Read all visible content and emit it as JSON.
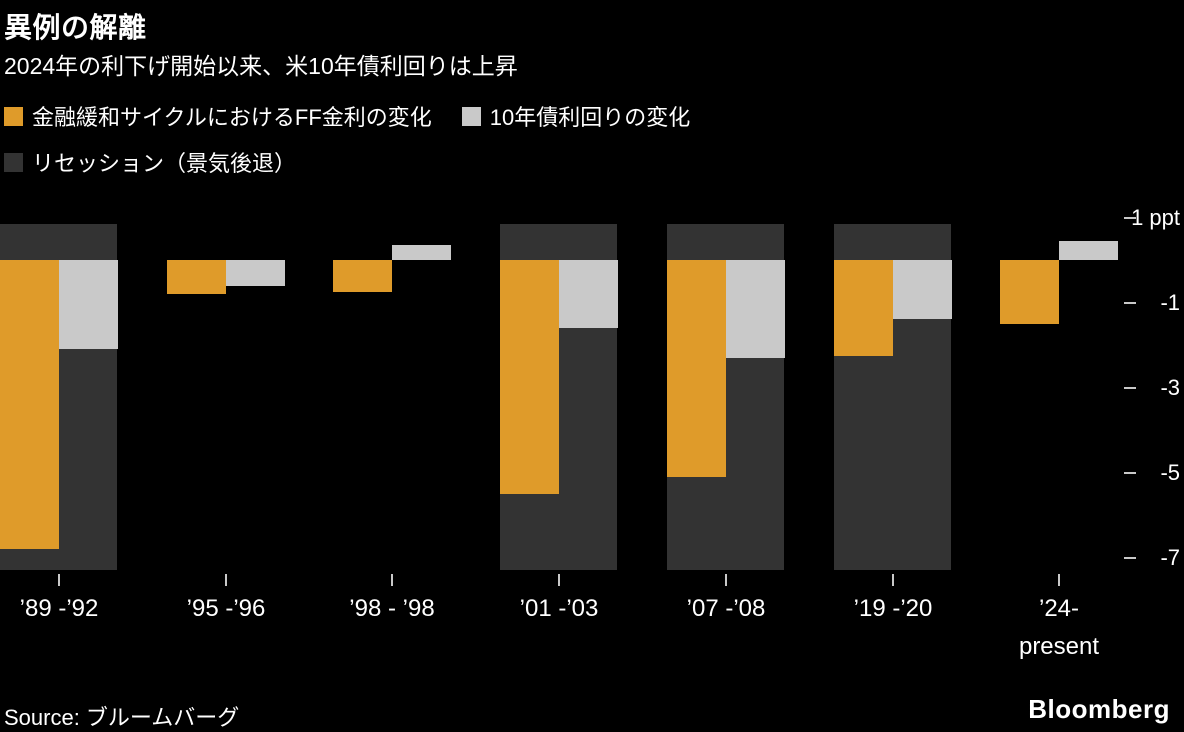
{
  "header": {
    "title": "異例の解離",
    "subtitle": "2024年の利下げ開始以来、米10年債利回りは上昇"
  },
  "legend": [
    {
      "label": "金融緩和サイクルにおけるFF金利の変化",
      "color": "#DF9B2A"
    },
    {
      "label": "10年債利回りの変化",
      "color": "#C9C9C9"
    },
    {
      "label": "リセッション（景気後退）",
      "color": "#333333"
    }
  ],
  "axis": {
    "ticks": [
      {
        "value": 1,
        "label": "1 ppt"
      },
      {
        "value": -1,
        "label": "-1"
      },
      {
        "value": -3,
        "label": "-3"
      },
      {
        "value": -5,
        "label": "-5"
      },
      {
        "value": -7,
        "label": "-7"
      }
    ]
  },
  "chart_data": {
    "type": "bar",
    "title": "異例の解離",
    "subtitle": "2024年の利下げ開始以来、米10年債利回りは上昇",
    "unit": "ppt",
    "categories": [
      "’89 -’92",
      "’95 -’96",
      "’98 - ’98",
      "’01 -’03",
      "’07 -’08",
      "’19 -’20",
      "’24-\npresent"
    ],
    "series": [
      {
        "name": "金融緩和サイクルにおけるFF金利の変化",
        "color": "#DF9B2A",
        "values": [
          -6.8,
          -0.8,
          -0.75,
          -5.5,
          -5.1,
          -2.25,
          -1.5
        ]
      },
      {
        "name": "10年債利回りの変化",
        "color": "#C9C9C9",
        "values": [
          -2.1,
          -0.6,
          0.35,
          -1.6,
          -2.3,
          -1.4,
          0.45
        ]
      }
    ],
    "recession_bands": [
      true,
      false,
      false,
      true,
      true,
      true,
      false
    ],
    "recession_color": "#333333",
    "recession_label": "リセッション（景気後退）",
    "ylim": [
      -7.4,
      1.1
    ],
    "yticks": [
      1,
      -1,
      -3,
      -5,
      -7
    ],
    "grid": false,
    "legend_position": "top",
    "background": "#000000"
  },
  "footer": {
    "source": "Source: ブルームバーグ",
    "brand": "Bloomberg"
  }
}
